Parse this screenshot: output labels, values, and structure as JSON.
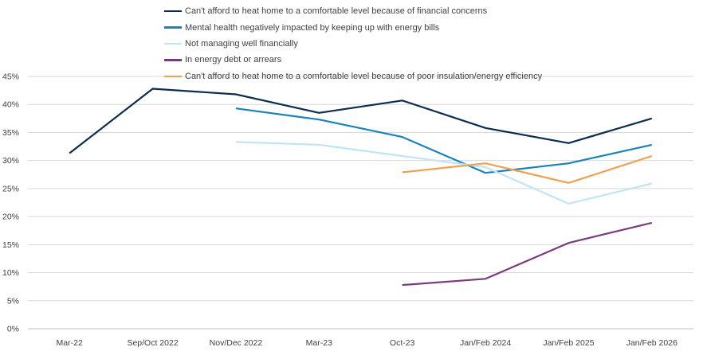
{
  "chart_data": {
    "type": "line",
    "title": "",
    "xlabel": "",
    "ylabel": "",
    "categories": [
      "Mar-22",
      "Sep/Oct 2022",
      "Nov/Dec 2022",
      "Mar-23",
      "Oct-23",
      "Jan/Feb 2024",
      "Jan/Feb 2025",
      "Jan/Feb 2026"
    ],
    "ylim": [
      0,
      45
    ],
    "yticks": [
      "0%",
      "5%",
      "10%",
      "15%",
      "20%",
      "25%",
      "30%",
      "35%",
      "40%",
      "45%"
    ],
    "grid": true,
    "legend_position": "top",
    "series": [
      {
        "name": "Can't afford to heat home to a comfortable level because of financial concerns",
        "color": "#0b2d4f",
        "values": [
          31.3,
          42.8,
          41.8,
          38.5,
          40.7,
          35.8,
          33.1,
          37.5
        ]
      },
      {
        "name": "Mental health negatively impacted by keeping up with energy bills",
        "color": "#1a82bd",
        "values": [
          null,
          null,
          39.3,
          37.3,
          34.2,
          27.8,
          29.5,
          32.8
        ]
      },
      {
        "name": "Not managing well financially",
        "color": "#bfe6f5",
        "values": [
          null,
          null,
          33.3,
          32.8,
          30.8,
          28.8,
          22.3,
          25.9
        ]
      },
      {
        "name": "In energy debt or arrears",
        "color": "#7b3a7e",
        "values": [
          null,
          null,
          null,
          null,
          7.8,
          8.9,
          15.3,
          18.9
        ]
      },
      {
        "name": "Can't afford to heat home to a comfortable level because of poor insulation/energy efficiency",
        "color": "#f0a050",
        "values": [
          null,
          null,
          null,
          null,
          27.9,
          29.5,
          26.0,
          30.8
        ]
      }
    ]
  }
}
